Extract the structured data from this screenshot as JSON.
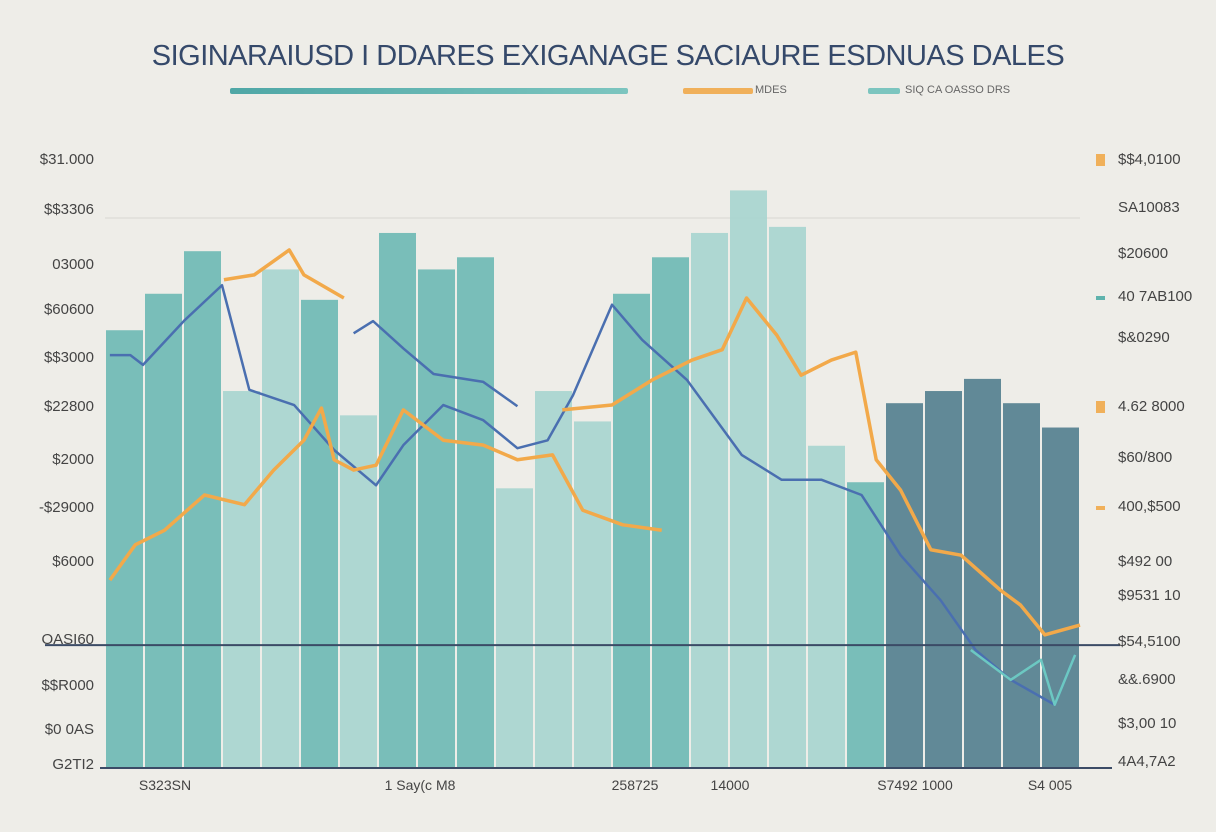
{
  "chart_data": {
    "type": "bar",
    "title": "SIGINARAIUSD I DDARES EXIGANAGE SACIAURE ESDNUAS DALES",
    "legend": [
      {
        "label": "",
        "color": "#5fb3ad"
      },
      {
        "label": "MDES",
        "color": "#f0b05a"
      },
      {
        "label": "SIQ CA OASSO DRS",
        "color": "#7cc5bf"
      }
    ],
    "legend_placement": "top",
    "left_ticks": [
      "$31.000",
      "$$3306",
      "03000",
      "$60600",
      "$$3000",
      "$22800",
      "$2000",
      "-$29000",
      "$6000",
      "OASI60",
      "$$R000",
      "$0 0AS",
      "G2TI2"
    ],
    "right_ticks": [
      "$$4,0100",
      "SA10083",
      "$20600",
      "40 7AB100",
      "$&0290",
      "4.62 8000",
      "$60/800",
      "400,$500",
      "$492 00",
      "$9531 10",
      "$54,5100",
      "&&.6900",
      "$3,00 10",
      "4A4,7A2"
    ],
    "right_swatches": [
      {
        "tick": 0,
        "color": "#f0b05a"
      },
      {
        "tick": 3,
        "color": "#5fb3ad"
      },
      {
        "tick": 5,
        "color": "#f0b05a"
      },
      {
        "tick": 7,
        "color": "#f0b05a"
      }
    ],
    "x_tick_labels": [
      "S323SN",
      "1 Say(c M8",
      "258725",
      "14000",
      "S7492 1000",
      "S4 005"
    ],
    "ylim": [
      0,
      100
    ],
    "xlim": [
      0,
      100
    ],
    "grid": false,
    "reference_line": 20.2,
    "bars": {
      "values": [
        72,
        78,
        85,
        62,
        82,
        77,
        58,
        88,
        82,
        84,
        46,
        62,
        57,
        78,
        84,
        88,
        95,
        89,
        53,
        47,
        60,
        62,
        64,
        60,
        56
      ],
      "tones": [
        "mid",
        "mid",
        "mid",
        "light",
        "light",
        "mid",
        "light",
        "mid",
        "mid",
        "mid",
        "light",
        "light",
        "light",
        "mid",
        "mid",
        "light",
        "light",
        "light",
        "light",
        "mid",
        "dark",
        "dark",
        "dark",
        "dark",
        "dark"
      ]
    },
    "colors": {
      "light": "#a8d5cf",
      "mid": "#6fbab4",
      "dark": "#55808f",
      "blue": "#4a6fb0",
      "orange": "#f2a94a",
      "teal": "#6cc8c2",
      "axis": "#3b4b66"
    },
    "series": [
      {
        "color_key": "blue",
        "points": [
          [
            0.5,
            67.9
          ],
          [
            2.6,
            67.9
          ],
          [
            3.9,
            66.3
          ],
          [
            8.2,
            73.7
          ],
          [
            12,
            79.4
          ],
          [
            14.8,
            62.2
          ],
          [
            19.4,
            59.7
          ],
          [
            23.5,
            52.3
          ],
          [
            27.8,
            46.5
          ],
          [
            30.6,
            53.1
          ],
          [
            34.7,
            59.7
          ],
          [
            38.8,
            57.2
          ],
          [
            42.3,
            52.6
          ],
          [
            45.4,
            53.9
          ],
          [
            48,
            61.3
          ],
          [
            52,
            76.2
          ],
          [
            55.1,
            70.4
          ],
          [
            59.7,
            63.8
          ],
          [
            65.3,
            51.5
          ],
          [
            69.4,
            47.4
          ],
          [
            73.5,
            47.4
          ],
          [
            77.6,
            44.9
          ],
          [
            81.6,
            35
          ],
          [
            85.7,
            27.6
          ],
          [
            89.3,
            19.4
          ],
          [
            92.9,
            14.5
          ],
          [
            97.4,
            10.4
          ],
          [
            99.5,
            18.6
          ]
        ]
      },
      {
        "color_key": "blue",
        "points": [
          [
            25.5,
            71.5
          ],
          [
            27.5,
            73.5
          ],
          [
            30.6,
            69
          ],
          [
            33.7,
            64.8
          ],
          [
            38.8,
            63.5
          ],
          [
            42.3,
            59.5
          ]
        ]
      },
      {
        "color_key": "orange",
        "points": [
          [
            0.5,
            30.9
          ],
          [
            3.1,
            36.7
          ],
          [
            6.1,
            39.1
          ],
          [
            10.2,
            44.9
          ],
          [
            14.3,
            43.3
          ],
          [
            17.3,
            49
          ],
          [
            20.4,
            53.9
          ],
          [
            22.2,
            59.2
          ],
          [
            23.5,
            50.7
          ],
          [
            25.5,
            49
          ],
          [
            27.8,
            49.8
          ],
          [
            30.6,
            58.9
          ],
          [
            34.7,
            53.9
          ],
          [
            38.8,
            53.1
          ],
          [
            42.3,
            50.7
          ],
          [
            45.9,
            51.5
          ],
          [
            49,
            42.4
          ],
          [
            53.1,
            40
          ],
          [
            57.1,
            39.1
          ]
        ]
      },
      {
        "color_key": "orange",
        "points": [
          [
            46.9,
            58.9
          ],
          [
            52,
            59.7
          ],
          [
            56.1,
            63.8
          ],
          [
            60.2,
            67.1
          ],
          [
            63.3,
            68.8
          ],
          [
            65.8,
            77.3
          ],
          [
            68.9,
            71.2
          ],
          [
            71.4,
            64.6
          ],
          [
            74.5,
            67.1
          ],
          [
            77,
            68.4
          ],
          [
            79.1,
            50.7
          ],
          [
            81.6,
            45.7
          ],
          [
            84.7,
            35.9
          ],
          [
            87.8,
            35
          ],
          [
            91.8,
            29.3
          ],
          [
            93.9,
            26.8
          ],
          [
            96.4,
            21.9
          ],
          [
            100,
            23.5
          ]
        ]
      },
      {
        "color_key": "orange",
        "points": [
          [
            12.2,
            80.3
          ],
          [
            15.3,
            81.1
          ],
          [
            18.9,
            85.2
          ],
          [
            20.4,
            81.1
          ],
          [
            24.5,
            77.3
          ]
        ]
      },
      {
        "color_key": "teal",
        "points": [
          [
            88.8,
            19.4
          ],
          [
            92.9,
            14.5
          ],
          [
            96,
            17.8
          ],
          [
            97.4,
            10.4
          ],
          [
            99.5,
            18.6
          ]
        ]
      }
    ]
  }
}
